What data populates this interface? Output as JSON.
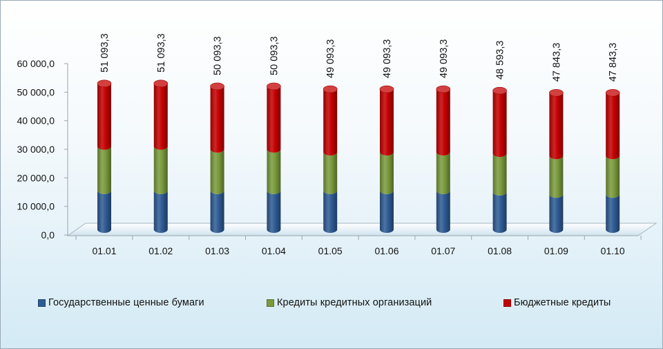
{
  "chart_data": {
    "type": "bar",
    "stacked": true,
    "categories": [
      "01.01",
      "01.02",
      "01.03",
      "01.04",
      "01.05",
      "01.06",
      "01.07",
      "01.08",
      "01.09",
      "01.10"
    ],
    "series": [
      {
        "name": "Государственные ценные бумаги",
        "color": "#2e5b94",
        "values": [
          13600,
          13600,
          13600,
          13600,
          13600,
          13600,
          13600,
          13100,
          12300,
          12300
        ]
      },
      {
        "name": "Кредиты  кредитных  организаций",
        "color": "#7a9a3c",
        "values": [
          15500,
          15500,
          14500,
          14500,
          13500,
          13500,
          13500,
          13500,
          13500,
          13500
        ]
      },
      {
        "name": "Бюджетные  кредиты",
        "color": "#c40000",
        "values": [
          21993.3,
          21993.3,
          21993.3,
          21993.3,
          21993.3,
          21993.3,
          21993.3,
          21993.3,
          22043.3,
          22043.3
        ]
      }
    ],
    "totals": [
      "51 093,3",
      "51 093,3",
      "50 093,3",
      "50 093,3",
      "49 093,3",
      "49 093,3",
      "49 093,3",
      "48 593,3",
      "47 843,3",
      "47 843,3"
    ],
    "total_values": [
      51093.3,
      51093.3,
      50093.3,
      50093.3,
      49093.3,
      49093.3,
      49093.3,
      48593.3,
      47843.3,
      47843.3
    ],
    "yticks": [
      "0,0",
      "10 000,0",
      "20 000,0",
      "30 000,0",
      "40 000,0",
      "50 000,0",
      "60 000,0"
    ],
    "ylim": [
      0,
      60000
    ],
    "legend_position": "bottom",
    "grid": false
  }
}
